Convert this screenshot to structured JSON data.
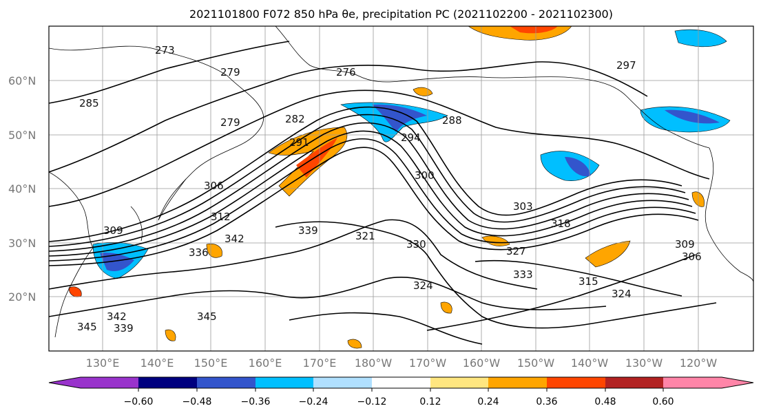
{
  "title": "2021101800 F072 850 hPa θe, precipitation PC (2021102200 - 2021102300)",
  "map": {
    "lat_labels": [
      "60°N",
      "50°N",
      "40°N",
      "30°N",
      "20°N"
    ],
    "lon_labels": [
      "130°E",
      "140°E",
      "150°E",
      "160°E",
      "170°E",
      "180°W",
      "170°W",
      "160°W",
      "150°W",
      "140°W",
      "130°W",
      "120°W"
    ],
    "contour_labels": [
      "273",
      "279",
      "276",
      "285",
      "279",
      "282",
      "291",
      "294",
      "288",
      "297",
      "300",
      "306",
      "303",
      "312",
      "309",
      "318",
      "315",
      "324",
      "336",
      "342",
      "339",
      "327",
      "321",
      "330",
      "333",
      "345",
      "342",
      "339",
      "345",
      "309",
      "306",
      "324"
    ]
  },
  "colorbar": {
    "ticks": [
      "−0.60",
      "−0.48",
      "−0.36",
      "−0.24",
      "−0.12",
      "0.12",
      "0.24",
      "0.36",
      "0.48",
      "0.60"
    ],
    "colors": [
      "#9933cc",
      "#00007f",
      "#3355cc",
      "#00bfff",
      "#b0e0ff",
      "#ffffff",
      "#ffe680",
      "#ffa500",
      "#ff4500",
      "#b22222",
      "#ff85a8"
    ]
  }
}
